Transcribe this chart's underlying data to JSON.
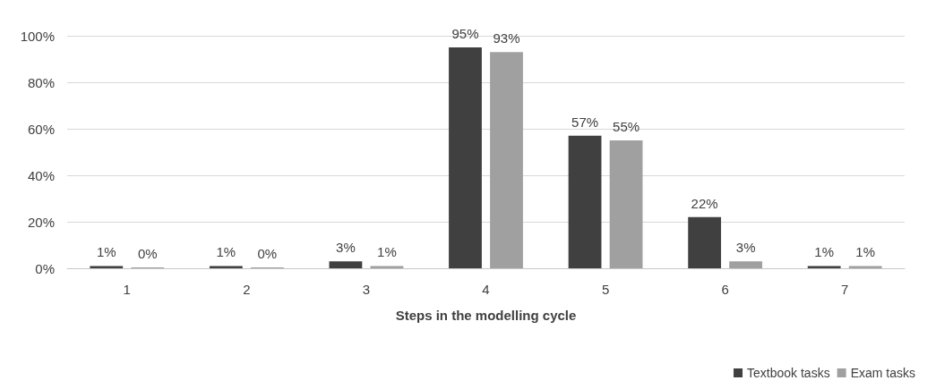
{
  "chart_data": {
    "type": "bar",
    "xlabel": "Steps in the modelling cycle",
    "categories": [
      "1",
      "2",
      "3",
      "4",
      "5",
      "6",
      "7"
    ],
    "series": [
      {
        "name": "Textbook tasks",
        "color": "#404040",
        "values": [
          1,
          1,
          3,
          95,
          57,
          22,
          1
        ],
        "value_labels": [
          "1%",
          "1%",
          "3%",
          "95%",
          "57%",
          "22%",
          "1%"
        ]
      },
      {
        "name": "Exam tasks",
        "color": "#a0a0a0",
        "values": [
          0,
          0,
          1,
          93,
          55,
          3,
          1
        ],
        "value_labels": [
          "0%",
          "0%",
          "1%",
          "93%",
          "55%",
          "3%",
          "1%"
        ]
      }
    ],
    "ylim": [
      0,
      100
    ],
    "yticks": [
      {
        "value": 0,
        "label": "0%"
      },
      {
        "value": 20,
        "label": "20%"
      },
      {
        "value": 40,
        "label": "40%"
      },
      {
        "value": 60,
        "label": "60%"
      },
      {
        "value": 80,
        "label": "80%"
      },
      {
        "value": 100,
        "label": "100%"
      }
    ],
    "grid": "y",
    "legend": "bottom right"
  }
}
